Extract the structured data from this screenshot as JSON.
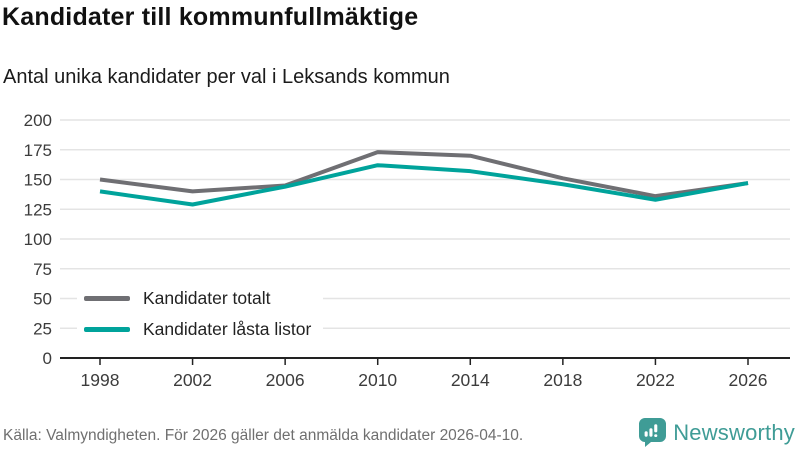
{
  "header": {
    "title": "Kandidater till kommunfullmäktige",
    "subtitle": "Antal unika kandidater per val i Leksands kommun"
  },
  "footer": {
    "source": "Källa: Valmyndigheten. För 2026 gäller det anmälda kandidater 2026-04-10.",
    "brand": "Newsworthy"
  },
  "colors": {
    "total_line": "#6f6f73",
    "locked_line": "#00a39b",
    "grid": "#e4e4e4",
    "axis": "#222222",
    "tick_text": "#3c3c3c",
    "brand_teal": "#3f9c96"
  },
  "chart_data": {
    "type": "line",
    "title": "Kandidater till kommunfullmäktige",
    "subtitle": "Antal unika kandidater per val i Leksands kommun",
    "xlabel": "",
    "ylabel": "",
    "x": [
      1998,
      2002,
      2006,
      2010,
      2014,
      2018,
      2022,
      2026
    ],
    "series": [
      {
        "name": "Kandidater totalt",
        "color": "#6f6f73",
        "values": [
          150,
          140,
          145,
          173,
          170,
          151,
          136,
          147
        ]
      },
      {
        "name": "Kandidater låsta listor",
        "color": "#00a39b",
        "values": [
          140,
          129,
          144,
          162,
          157,
          146,
          133,
          147
        ]
      }
    ],
    "ylim": [
      0,
      200
    ],
    "yticks": [
      0,
      25,
      50,
      75,
      100,
      125,
      150,
      175,
      200
    ],
    "grid": true,
    "legend_position": "inside-bottom-left"
  }
}
